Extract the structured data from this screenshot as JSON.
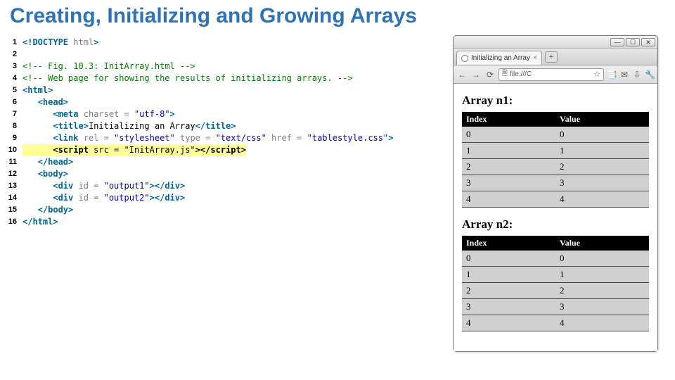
{
  "title": "Creating, Initializing and Growing Arrays",
  "title_color": "#2e74b5",
  "code": {
    "lines": [
      {
        "n": 1,
        "segs": [
          {
            "t": "<!DOCTYPE ",
            "c": "tag"
          },
          {
            "t": "html",
            "c": "attrn"
          },
          {
            "t": ">",
            "c": "tag"
          }
        ]
      },
      {
        "n": 2,
        "segs": []
      },
      {
        "n": 3,
        "segs": [
          {
            "t": "<!-- Fig. 10.3: InitArray.html -->",
            "c": "cmt"
          }
        ]
      },
      {
        "n": 4,
        "segs": [
          {
            "t": "<!-- Web page for showing the results of initializing arrays. -->",
            "c": "cmt"
          }
        ]
      },
      {
        "n": 5,
        "segs": [
          {
            "t": "<html>",
            "c": "tag"
          }
        ]
      },
      {
        "n": 6,
        "segs": [
          {
            "t": "   ",
            "c": "code"
          },
          {
            "t": "<head>",
            "c": "tag"
          }
        ]
      },
      {
        "n": 7,
        "segs": [
          {
            "t": "      ",
            "c": "code"
          },
          {
            "t": "<meta ",
            "c": "tag"
          },
          {
            "t": "charset = ",
            "c": "attrn"
          },
          {
            "t": "\"utf-8\"",
            "c": "attrv"
          },
          {
            "t": ">",
            "c": "tag"
          }
        ]
      },
      {
        "n": 8,
        "segs": [
          {
            "t": "      ",
            "c": "code"
          },
          {
            "t": "<title>",
            "c": "tag"
          },
          {
            "t": "Initializing an Array",
            "c": "code"
          },
          {
            "t": "</title>",
            "c": "tag"
          }
        ]
      },
      {
        "n": 9,
        "segs": [
          {
            "t": "      ",
            "c": "code"
          },
          {
            "t": "<link ",
            "c": "tag"
          },
          {
            "t": "rel = ",
            "c": "attrn"
          },
          {
            "t": "\"stylesheet\"",
            "c": "attrv"
          },
          {
            "t": " type = ",
            "c": "attrn"
          },
          {
            "t": "\"text/css\"",
            "c": "attrv"
          },
          {
            "t": " href = ",
            "c": "attrn"
          },
          {
            "t": "\"tablestyle.css\"",
            "c": "attrv"
          },
          {
            "t": ">",
            "c": "tag"
          }
        ]
      },
      {
        "n": 10,
        "hl": true,
        "segs": [
          {
            "t": "      ",
            "c": "code"
          },
          {
            "t": "<script ",
            "c": "tag"
          },
          {
            "t": "src = ",
            "c": "attrn"
          },
          {
            "t": "\"InitArray.js\"",
            "c": "attrv"
          },
          {
            "t": ">",
            "c": "tag"
          },
          {
            "t": "</script>",
            "c": "tag"
          }
        ]
      },
      {
        "n": 11,
        "segs": [
          {
            "t": "   ",
            "c": "code"
          },
          {
            "t": "</head>",
            "c": "tag"
          }
        ]
      },
      {
        "n": 12,
        "segs": [
          {
            "t": "   ",
            "c": "code"
          },
          {
            "t": "<body>",
            "c": "tag"
          }
        ]
      },
      {
        "n": 13,
        "segs": [
          {
            "t": "      ",
            "c": "code"
          },
          {
            "t": "<div ",
            "c": "tag"
          },
          {
            "t": "id = ",
            "c": "attrn"
          },
          {
            "t": "\"output1\"",
            "c": "attrv"
          },
          {
            "t": ">",
            "c": "tag"
          },
          {
            "t": "</div>",
            "c": "tag"
          }
        ]
      },
      {
        "n": 14,
        "segs": [
          {
            "t": "      ",
            "c": "code"
          },
          {
            "t": "<div ",
            "c": "tag"
          },
          {
            "t": "id = ",
            "c": "attrn"
          },
          {
            "t": "\"output2\"",
            "c": "attrv"
          },
          {
            "t": ">",
            "c": "tag"
          },
          {
            "t": "</div>",
            "c": "tag"
          }
        ]
      },
      {
        "n": 15,
        "segs": [
          {
            "t": "   ",
            "c": "code"
          },
          {
            "t": "</body>",
            "c": "tag"
          }
        ]
      },
      {
        "n": 16,
        "segs": [
          {
            "t": "</html>",
            "c": "tag"
          }
        ]
      }
    ],
    "highlight_bg": "#ffff99"
  },
  "browser": {
    "win_buttons": [
      "—",
      "☐",
      "✕"
    ],
    "tab_label": "Initializing an Array",
    "newtab_label": "+",
    "nav": {
      "back": "←",
      "fwd": "→",
      "reload": "⟳"
    },
    "omnibox_icon": "🗎",
    "omnibox_text": "file:///C",
    "omnibox_star": "☆",
    "toolbar_icons": [
      "📑",
      "✉",
      "⇩",
      "🔧"
    ],
    "page": {
      "arrays": [
        {
          "title": "Array n1:",
          "columns": [
            "Index",
            "Value"
          ],
          "rows": [
            [
              "0",
              "0"
            ],
            [
              "1",
              "1"
            ],
            [
              "2",
              "2"
            ],
            [
              "3",
              "3"
            ],
            [
              "4",
              "4"
            ]
          ]
        },
        {
          "title": "Array n2:",
          "columns": [
            "Index",
            "Value"
          ],
          "rows": [
            [
              "0",
              "0"
            ],
            [
              "1",
              "1"
            ],
            [
              "2",
              "2"
            ],
            [
              "3",
              "3"
            ],
            [
              "4",
              "4"
            ]
          ]
        }
      ],
      "header_bg": "#000000",
      "header_fg": "#ffffff",
      "row_bg": "#d0d0d0",
      "row_border": "#4a4a4a"
    }
  }
}
